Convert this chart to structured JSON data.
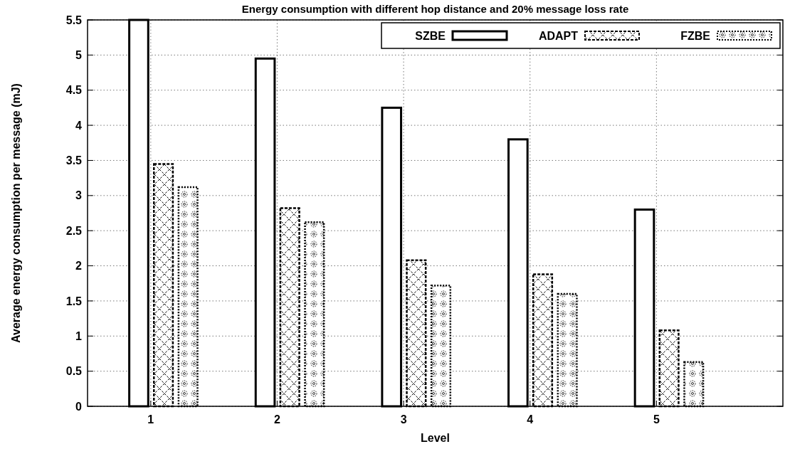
{
  "chart_data": {
    "type": "bar",
    "title": "Energy consumption with different hop distance and 20% message loss rate",
    "xlabel": "Level",
    "ylabel": "Average energy consumption per message (mJ)",
    "x": [
      1,
      2,
      3,
      4,
      5
    ],
    "xlim": [
      0.5,
      6
    ],
    "xticks": [
      1,
      2,
      3,
      4,
      5
    ],
    "ylim": [
      0,
      5.5
    ],
    "yticks": [
      0,
      0.5,
      1,
      1.5,
      2,
      2.5,
      3,
      3.5,
      4,
      4.5,
      5,
      5.5
    ],
    "series": [
      {
        "name": "SZBE",
        "color": "#000000",
        "values": [
          5.5,
          4.95,
          4.25,
          3.8,
          2.8
        ]
      },
      {
        "name": "ADAPT",
        "color": "#000000",
        "values": [
          3.45,
          2.82,
          2.08,
          1.88,
          1.08
        ]
      },
      {
        "name": "FZBE",
        "color": "#000000",
        "values": [
          3.12,
          2.62,
          1.72,
          1.6,
          0.63
        ]
      }
    ],
    "grid": true,
    "legend": "top right"
  }
}
